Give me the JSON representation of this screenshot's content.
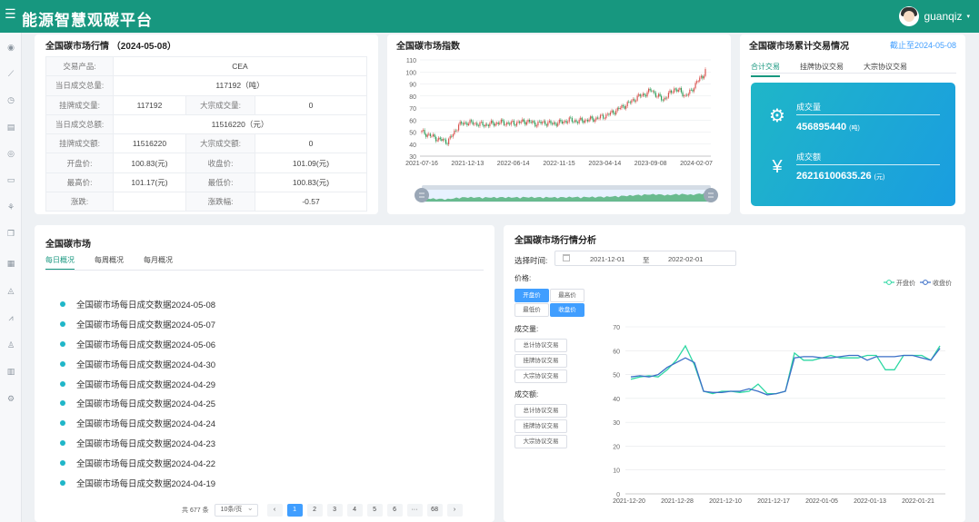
{
  "header": {
    "title": "能源智慧观碳平台",
    "user": "guanqiz"
  },
  "market": {
    "title": "全国碳市场行情 （2024-05-08）",
    "product_label": "交易产品:",
    "product": "CEA",
    "daily_volume_label": "当日成交总量:",
    "daily_volume": "117192（吨）",
    "listed_volume_label": "挂牌成交量:",
    "listed_volume": "117192",
    "bulk_volume_label": "大宗成交量:",
    "bulk_volume": "0",
    "daily_amount_label": "当日成交总额:",
    "daily_amount": "11516220（元）",
    "listed_amount_label": "挂牌成交额:",
    "listed_amount": "11516220",
    "bulk_amount_label": "大宗成交额:",
    "bulk_amount": "0",
    "open_label": "开盘价:",
    "open": "100.83(元)",
    "close_label": "收盘价:",
    "close": "101.09(元)",
    "high_label": "最高价:",
    "high": "101.17(元)",
    "low_label": "最低价:",
    "low": "100.83(元)",
    "change_label": "涨跌:",
    "change": "",
    "change_pct_label": "涨跌幅:",
    "change_pct": "-0.57"
  },
  "index_chart": {
    "title": "全国碳市场指数"
  },
  "cumulative": {
    "title": "全国碳市场累计交易情况",
    "as_of": "截止至2024-05-08",
    "tabs": [
      "合计交易",
      "挂牌协议交易",
      "大宗协议交易"
    ],
    "volume_label": "成交量",
    "volume": "456895440",
    "volume_unit": "(吨)",
    "amount_label": "成交额",
    "amount": "26216100635.26",
    "amount_unit": "(元)",
    "icons": [
      "gear-icon",
      "yen-icon"
    ]
  },
  "national": {
    "title": "全国碳市场",
    "tabs": [
      "每日概况",
      "每周概况",
      "每月概况"
    ],
    "items": [
      "全国碳市场每日成交数据2024-05-08",
      "全国碳市场每日成交数据2024-05-07",
      "全国碳市场每日成交数据2024-05-06",
      "全国碳市场每日成交数据2024-04-30",
      "全国碳市场每日成交数据2024-04-29",
      "全国碳市场每日成交数据2024-04-25",
      "全国碳市场每日成交数据2024-04-24",
      "全国碳市场每日成交数据2024-04-23",
      "全国碳市场每日成交数据2024-04-22",
      "全国碳市场每日成交数据2024-04-19"
    ],
    "pager": {
      "total": "共 677 条",
      "size": "10条/页",
      "pages": [
        "1",
        "2",
        "3",
        "4",
        "5",
        "6",
        "···",
        "68"
      ],
      "prev": "‹",
      "next": "›"
    }
  },
  "analysis": {
    "title": "全国碳市场行情分析",
    "time_label": "选择时间:",
    "start": "2021-12-01",
    "range_sep": "至",
    "end": "2022-02-01",
    "price_label": "价格:",
    "price_options": [
      "开盘价",
      "最高价",
      "最低价",
      "收盘价"
    ],
    "volume_label": "成交量:",
    "volume_options": [
      "总计协议交易",
      "挂牌协议交易",
      "大宗协议交易"
    ],
    "amount_label": "成交额:",
    "amount_options": [
      "总计协议交易",
      "挂牌协议交易",
      "大宗协议交易"
    ]
  },
  "sidebar": {
    "icons": [
      "dashboard-icon",
      "trend-icon",
      "clock-icon",
      "monitor-icon",
      "eye-icon",
      "screen-icon",
      "leaf-icon",
      "document-icon",
      "chart-icon",
      "area-chart-icon",
      "line-chart-icon",
      "user-icon",
      "bar-chart-icon",
      "settings-icon"
    ]
  },
  "colors": {
    "header": "#17977f",
    "accent": "#409eff",
    "panel": "#1fb6c8",
    "open_line": "#2ed8a3",
    "close_line": "#3b6fc7",
    "candle_up": "#d9534f",
    "candle_down": "#2e9e5b"
  },
  "chart_data": [
    {
      "type": "candlestick",
      "title": "全国碳市场指数",
      "x_ticks": [
        "2021-07-16",
        "2021-12-13",
        "2022-06-14",
        "2022-11-15",
        "2023-04-14",
        "2023-09-08",
        "2024-02-07"
      ],
      "y_ticks": [
        30,
        40,
        50,
        60,
        70,
        80,
        90,
        100,
        110
      ],
      "ylim": [
        30,
        110
      ],
      "grid": true,
      "has_range_slider": true,
      "trend": [
        [
          0,
          50
        ],
        [
          6,
          47
        ],
        [
          12,
          44
        ],
        [
          18,
          42
        ],
        [
          22,
          48
        ],
        [
          26,
          56
        ],
        [
          32,
          58
        ],
        [
          38,
          57
        ],
        [
          44,
          56
        ],
        [
          50,
          57
        ],
        [
          56,
          58
        ],
        [
          62,
          57
        ],
        [
          68,
          58
        ],
        [
          74,
          59
        ],
        [
          80,
          57
        ],
        [
          86,
          58
        ],
        [
          92,
          57
        ],
        [
          98,
          58
        ],
        [
          104,
          60
        ],
        [
          110,
          59
        ],
        [
          116,
          60
        ],
        [
          122,
          61
        ],
        [
          128,
          63
        ],
        [
          134,
          66
        ],
        [
          140,
          70
        ],
        [
          146,
          74
        ],
        [
          152,
          79
        ],
        [
          158,
          82
        ],
        [
          162,
          85
        ],
        [
          166,
          80
        ],
        [
          170,
          77
        ],
        [
          174,
          81
        ],
        [
          178,
          86
        ],
        [
          182,
          84
        ],
        [
          186,
          80
        ],
        [
          190,
          84
        ],
        [
          194,
          92
        ],
        [
          198,
          96
        ],
        [
          200,
          102
        ]
      ]
    },
    {
      "type": "line",
      "x_ticks": [
        "2021-12-20",
        "2021-12-28",
        "2021-12-10",
        "2021-12-17",
        "2022-01-05",
        "2022-01-13",
        "2022-01-21"
      ],
      "y_ticks": [
        0,
        10,
        20,
        30,
        40,
        50,
        60,
        70
      ],
      "ylim": [
        0,
        70
      ],
      "legend_position": "top-right",
      "series": [
        {
          "name": "开盘价",
          "values": [
            48,
            49,
            49.5,
            49,
            52,
            56,
            62,
            54,
            43,
            42,
            43,
            43,
            42.5,
            43,
            46,
            42,
            42,
            43,
            59,
            56,
            56,
            57,
            58,
            57,
            57,
            57,
            58,
            58,
            52,
            52,
            58,
            58,
            58,
            56,
            62
          ]
        },
        {
          "name": "收盘价",
          "values": [
            49,
            49.5,
            49,
            50,
            53,
            55,
            57,
            55,
            43,
            42.5,
            42.5,
            43,
            43,
            44,
            43,
            41.5,
            42,
            43,
            57,
            57.5,
            57.5,
            57,
            57,
            57.5,
            58,
            58,
            56,
            57.5,
            57.5,
            57.5,
            58,
            58,
            57,
            56,
            61
          ]
        }
      ]
    }
  ]
}
